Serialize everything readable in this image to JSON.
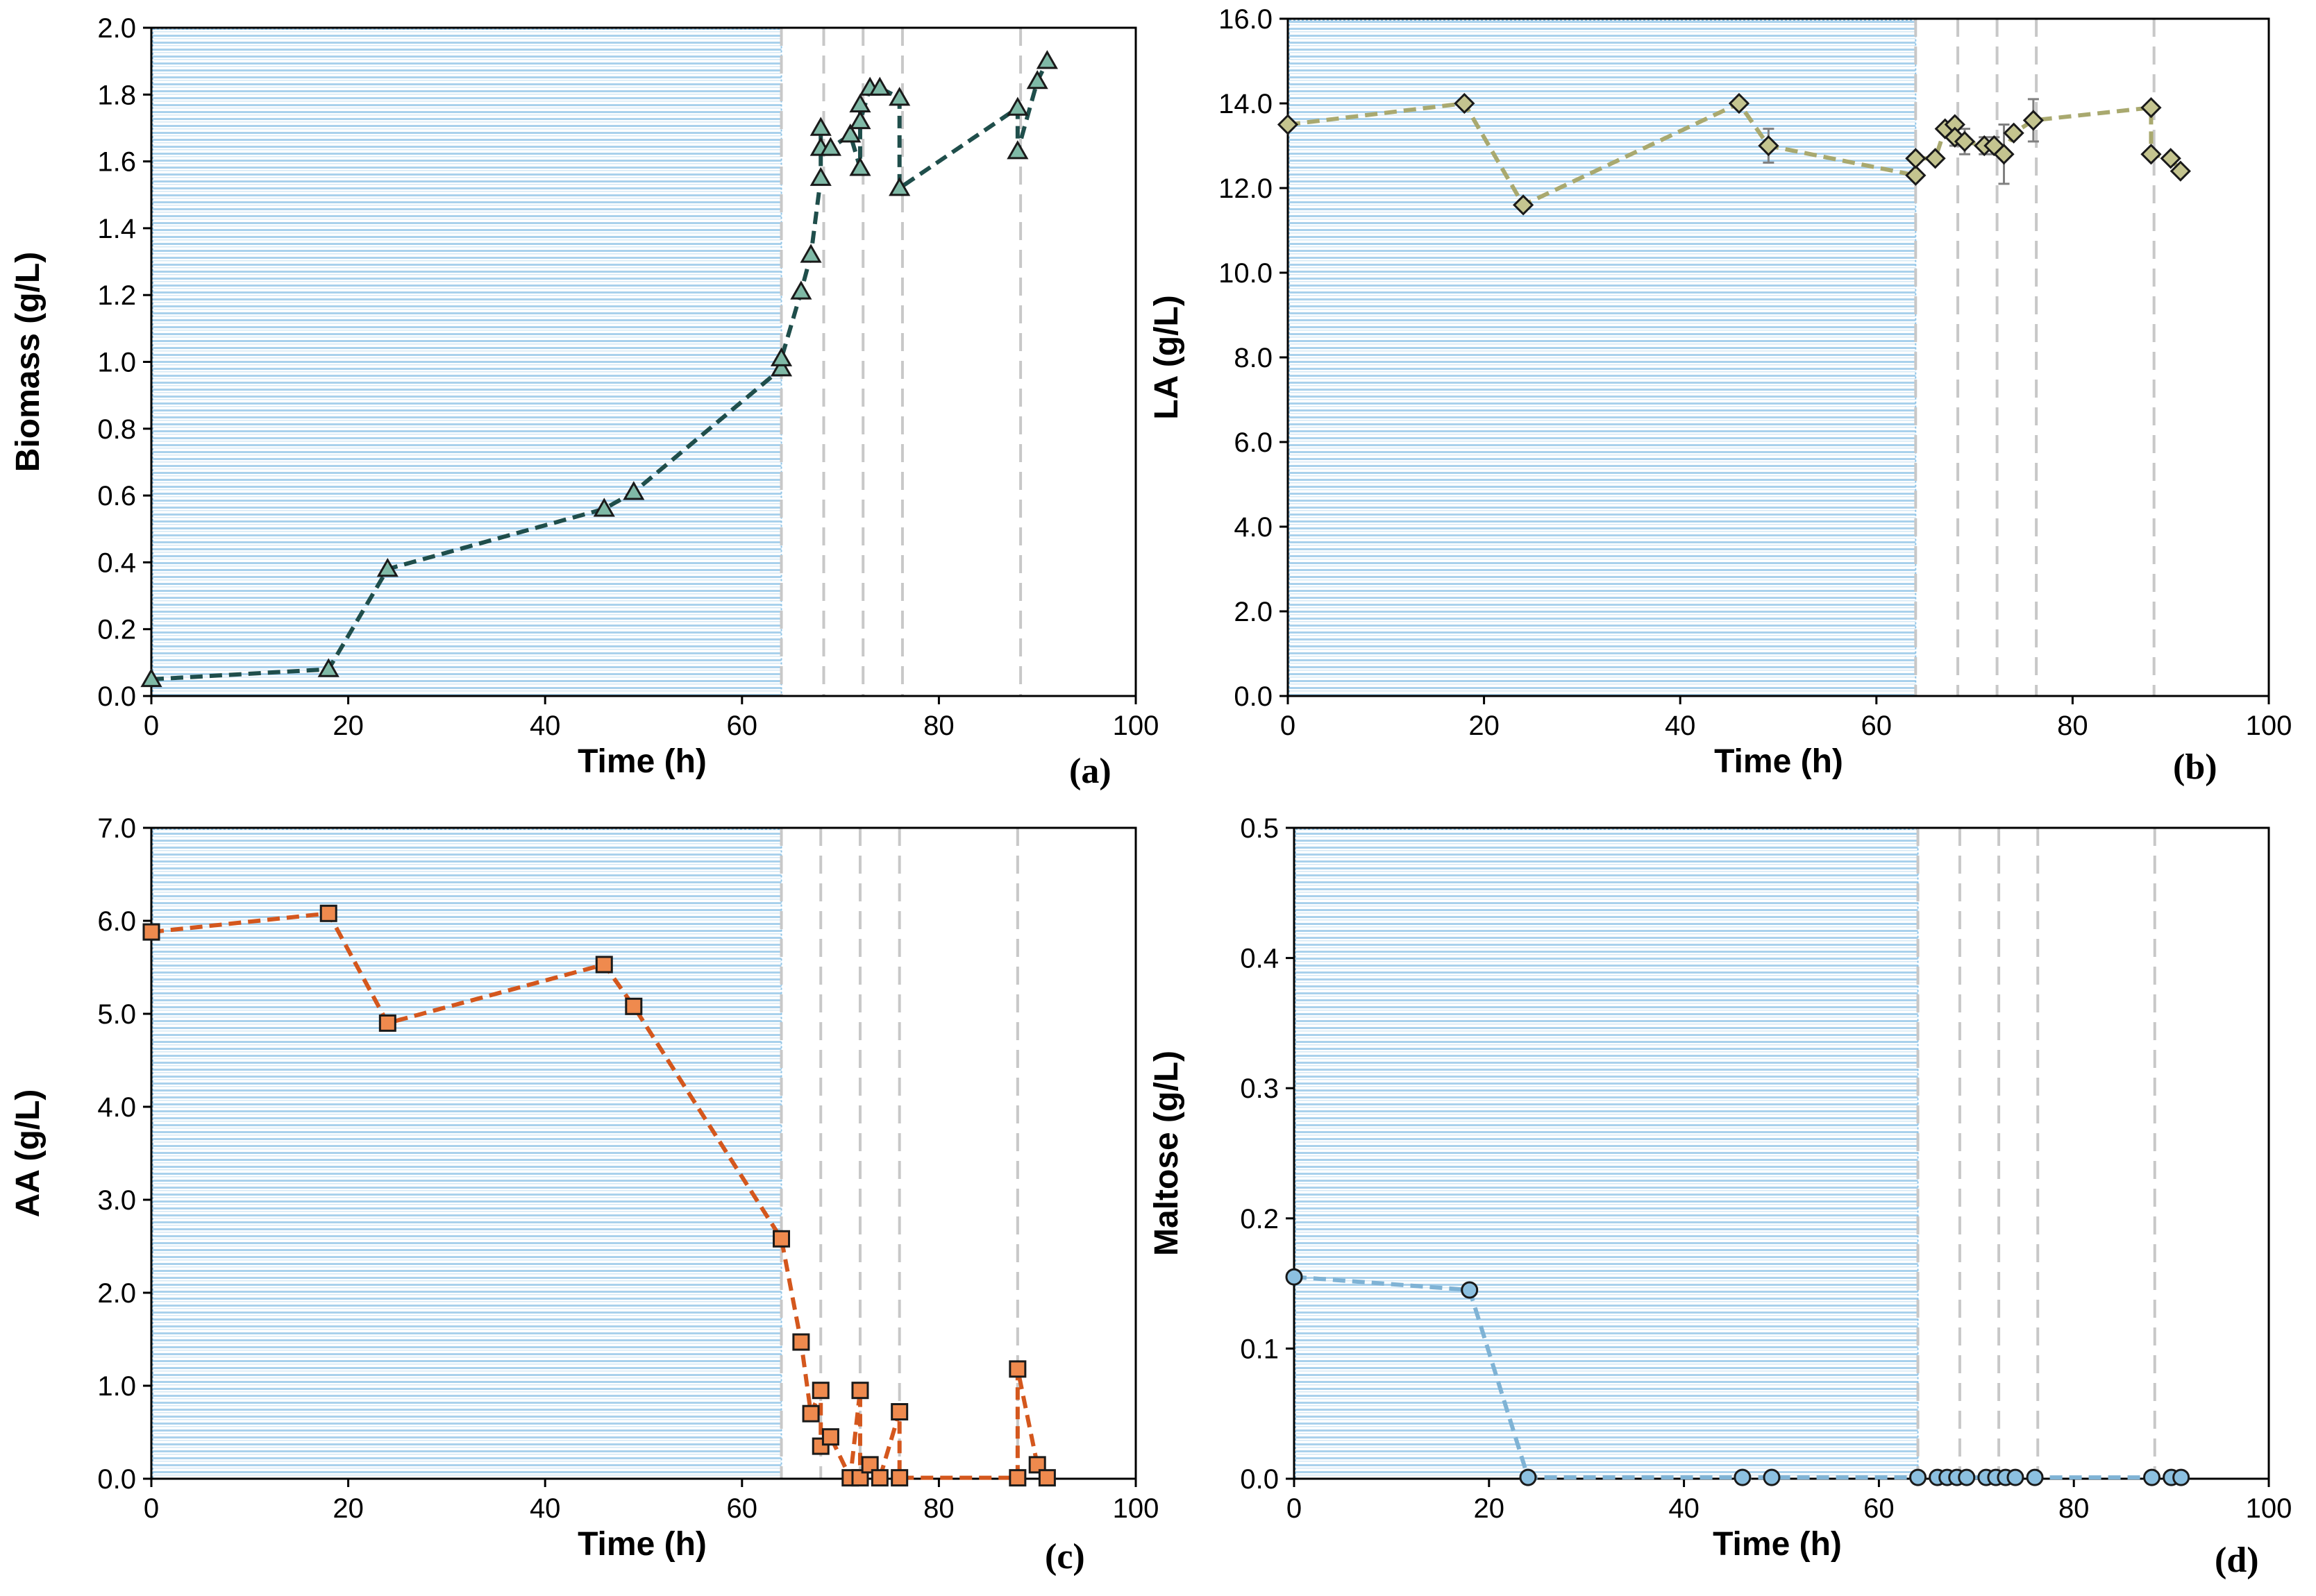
{
  "chart_data": [
    {
      "type": "line",
      "panel_label": "(a)",
      "xlabel": "Time (h)",
      "ylabel": "Biomass (g/L)",
      "xlim": [
        0,
        100
      ],
      "ylim": [
        0,
        2.0
      ],
      "xticks": [
        0,
        20,
        40,
        60,
        80,
        100
      ],
      "xtick_labels": [
        "0",
        "20",
        "40",
        "60",
        "80",
        "100"
      ],
      "yticks": [
        0,
        0.2,
        0.4,
        0.6,
        0.8,
        1.0,
        1.2,
        1.4,
        1.6,
        1.8,
        2.0
      ],
      "ytick_labels": [
        "0.0",
        "0.2",
        "0.4",
        "0.6",
        "0.8",
        "1.0",
        "1.2",
        "1.4",
        "1.6",
        "1.8",
        "2.0"
      ],
      "shaded_region": [
        0,
        64
      ],
      "vlines": [
        64,
        68.3,
        72.3,
        76.3,
        88.3
      ],
      "marker": "triangle",
      "color": "#1f4e4b",
      "marker_fill": "#7fb9a6",
      "series": [
        {
          "name": "Biomass",
          "x": [
            0,
            18,
            24,
            46,
            49,
            64,
            64,
            66,
            67,
            68,
            68,
            68,
            69,
            71,
            72,
            72,
            72,
            73,
            74,
            76,
            76,
            88,
            88,
            90,
            91
          ],
          "y": [
            0.05,
            0.08,
            0.38,
            0.56,
            0.61,
            0.98,
            1.01,
            1.21,
            1.32,
            1.55,
            1.7,
            1.64,
            1.64,
            1.68,
            1.58,
            1.77,
            1.72,
            1.82,
            1.82,
            1.79,
            1.52,
            1.76,
            1.63,
            1.84,
            1.9
          ]
        }
      ]
    },
    {
      "type": "line",
      "panel_label": "(b)",
      "xlabel": "Time (h)",
      "ylabel": "LA (g/L)",
      "xlim": [
        0,
        100
      ],
      "ylim": [
        0,
        16.0
      ],
      "xticks": [
        0,
        20,
        40,
        60,
        80,
        100
      ],
      "xtick_labels": [
        "0",
        "20",
        "40",
        "60",
        "80",
        "100"
      ],
      "yticks": [
        0,
        2,
        4,
        6,
        8,
        10,
        12,
        14,
        16
      ],
      "ytick_labels": [
        "0.0",
        "2.0",
        "4.0",
        "6.0",
        "8.0",
        "10.0",
        "12.0",
        "14.0",
        "16.0"
      ],
      "shaded_region": [
        0,
        64
      ],
      "vlines": [
        64,
        68.3,
        72.3,
        76.3,
        88.3
      ],
      "marker": "diamond",
      "color": "#a9a96f",
      "marker_fill": "#c4c48f",
      "series": [
        {
          "name": "LA",
          "x": [
            0,
            18,
            24,
            46,
            49,
            64,
            64,
            66,
            67,
            68,
            68,
            69,
            71,
            72,
            73,
            74,
            76,
            88,
            88,
            90,
            91
          ],
          "y": [
            13.5,
            14.0,
            11.6,
            14.0,
            13.0,
            12.3,
            12.7,
            12.7,
            13.4,
            13.5,
            13.2,
            13.1,
            13.0,
            13.0,
            12.8,
            13.3,
            13.6,
            13.9,
            12.8,
            12.7,
            12.4
          ],
          "error": [
            0,
            0,
            0,
            0,
            0.4,
            0,
            0,
            0,
            0,
            0,
            0.2,
            0.3,
            0.2,
            0.2,
            0.7,
            0,
            0.5,
            0,
            0,
            0,
            0
          ]
        }
      ]
    },
    {
      "type": "line",
      "panel_label": "(c)",
      "xlabel": "Time (h)",
      "ylabel": "AA (g/L)",
      "xlim": [
        0,
        100
      ],
      "ylim": [
        0,
        7.0
      ],
      "xticks": [
        0,
        20,
        40,
        60,
        80,
        100
      ],
      "xtick_labels": [
        "0",
        "20",
        "40",
        "60",
        "80",
        "100"
      ],
      "yticks": [
        0,
        1,
        2,
        3,
        4,
        5,
        6,
        7
      ],
      "ytick_labels": [
        "0.0",
        "1.0",
        "2.0",
        "3.0",
        "4.0",
        "5.0",
        "6.0",
        "7.0"
      ],
      "shaded_region": [
        0,
        64
      ],
      "vlines": [
        64,
        68,
        72,
        76,
        88
      ],
      "marker": "square",
      "color": "#d4571d",
      "marker_fill": "#ef8a4e",
      "series": [
        {
          "name": "AA",
          "x": [
            0,
            18,
            24,
            46,
            49,
            64,
            66,
            67,
            68,
            68,
            69,
            71,
            72,
            72,
            73,
            74,
            76,
            76,
            88,
            88,
            90,
            91
          ],
          "y": [
            5.88,
            6.08,
            4.9,
            5.53,
            5.08,
            2.58,
            1.47,
            0.7,
            0.95,
            0.35,
            0.45,
            0.01,
            0.95,
            0.01,
            0.15,
            0.01,
            0.72,
            0.01,
            0.01,
            1.18,
            0.15,
            0.01
          ]
        }
      ]
    },
    {
      "type": "line",
      "panel_label": "(d)",
      "xlabel": "Time (h)",
      "ylabel": "Maltose (g/L)",
      "xlim": [
        0,
        100
      ],
      "ylim": [
        0,
        0.5
      ],
      "xticks": [
        0,
        20,
        40,
        60,
        80,
        100
      ],
      "xtick_labels": [
        "0",
        "20",
        "40",
        "60",
        "80",
        "100"
      ],
      "yticks": [
        0,
        0.1,
        0.2,
        0.3,
        0.4,
        0.5
      ],
      "ytick_labels": [
        "0.0",
        "0.1",
        "0.2",
        "0.3",
        "0.4",
        "0.5"
      ],
      "shaded_region": [
        0,
        64
      ],
      "vlines": [
        64,
        68.3,
        72.3,
        76.3,
        88.3
      ],
      "marker": "circle",
      "color": "#7fb3d5",
      "marker_fill": "#8cc0e0",
      "series": [
        {
          "name": "Maltose",
          "x": [
            0,
            18,
            24,
            46,
            49,
            64,
            66,
            67,
            68,
            69,
            71,
            72,
            73,
            74,
            76,
            88,
            90,
            91
          ],
          "y": [
            0.155,
            0.145,
            0.001,
            0.001,
            0.001,
            0.001,
            0.001,
            0.001,
            0.001,
            0.001,
            0.001,
            0.001,
            0.001,
            0.001,
            0.001,
            0.001,
            0.001,
            0.001
          ]
        }
      ]
    }
  ]
}
